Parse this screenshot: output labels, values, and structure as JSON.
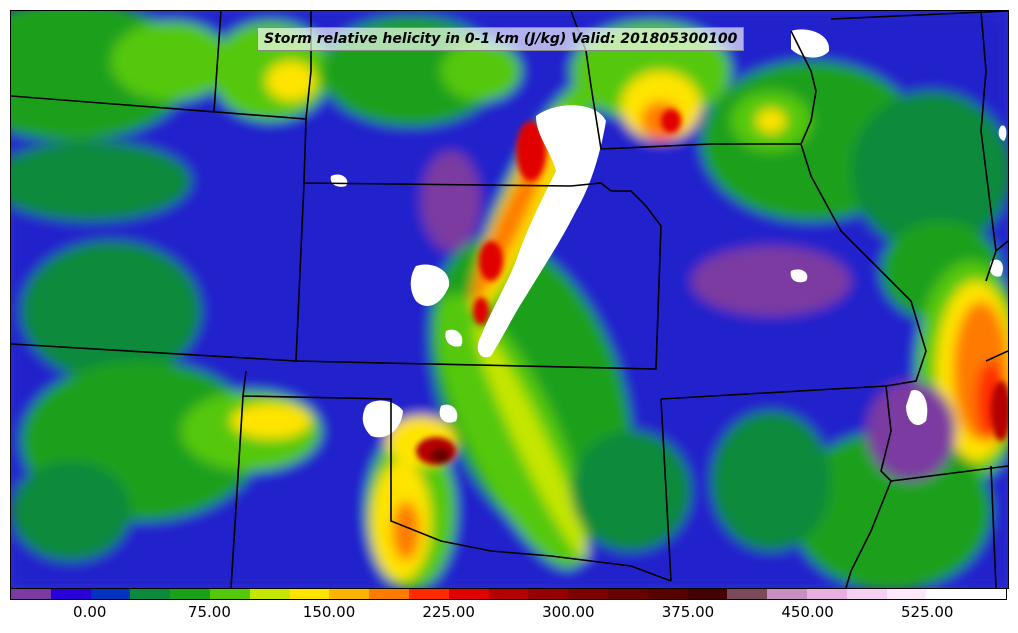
{
  "map": {
    "title": "Storm relative helicity in 0-1 km (J/kg) Valid: 201805300100"
  },
  "colorbar": {
    "min": -50,
    "max": 575,
    "step": 25,
    "colors": [
      "#7b3aa0",
      "#2a00d8",
      "#0033c0",
      "#0a8a3a",
      "#1aa01a",
      "#54c80a",
      "#c4e600",
      "#ffe400",
      "#ffb400",
      "#ff7a00",
      "#ff2a00",
      "#e00000",
      "#b40000",
      "#960000",
      "#7c0000",
      "#680000",
      "#560000",
      "#440000",
      "#7a4a5a",
      "#c890c0",
      "#e8b0e0",
      "#f6d0f2",
      "#fde8fb",
      "#ffffff",
      "#ffffff"
    ],
    "tick_labels": [
      "0.00",
      "75.00",
      "150.00",
      "225.00",
      "300.00",
      "375.00",
      "450.00",
      "525.00"
    ],
    "tick_values": [
      0,
      75,
      150,
      225,
      300,
      375,
      450,
      525
    ]
  }
}
